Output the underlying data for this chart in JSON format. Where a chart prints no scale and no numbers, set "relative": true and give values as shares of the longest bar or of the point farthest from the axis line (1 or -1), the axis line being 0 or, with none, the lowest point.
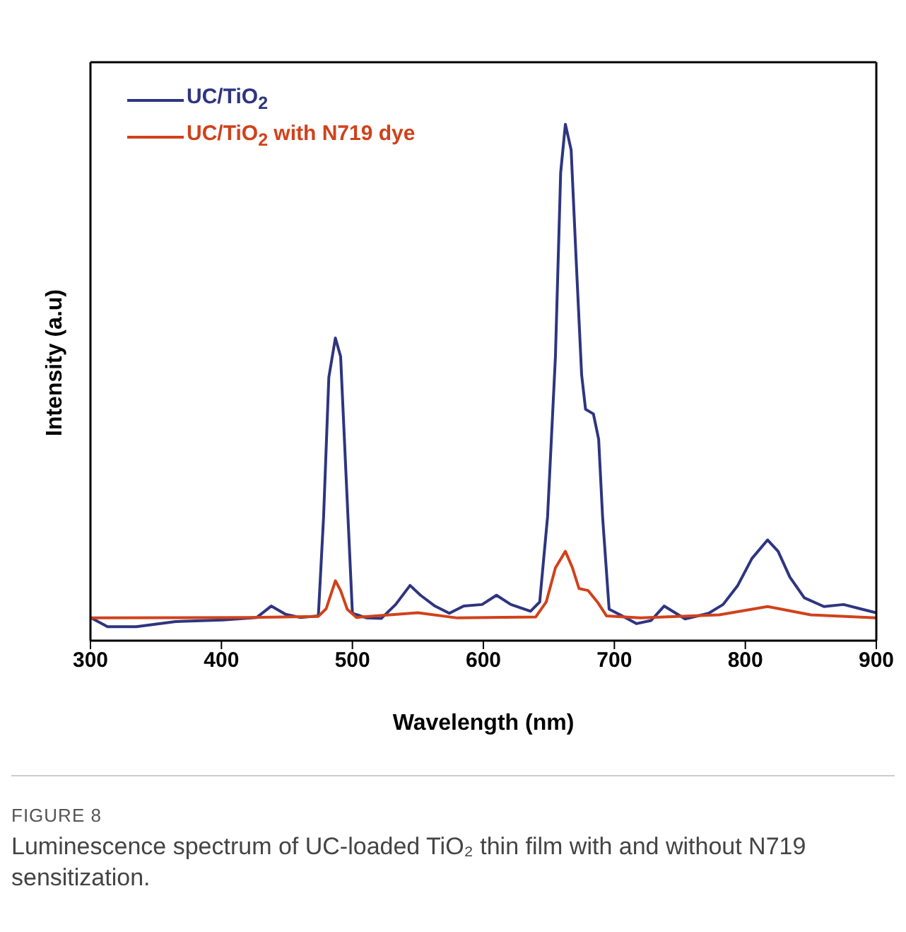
{
  "chart_data": {
    "type": "line",
    "title": "FIGURE 8",
    "xlabel": "Wavelength (nm)",
    "ylabel": "Intensity (a.u)",
    "relative": true,
    "annotations": [
      "Luminescence spectrum of UC-loaded TiO₂ thin film with and without N719 sensitization."
    ],
    "xlim": [
      300,
      900
    ],
    "xticks": [
      300,
      400,
      500,
      600,
      700,
      800,
      900
    ],
    "legend": "top left",
    "marker": "none",
    "line_style": "solid",
    "series": [
      {
        "name": "UC/TiO$_{2}$",
        "color": "#2e3580",
        "x": [
          300,
          313,
          335,
          365,
          401,
          427,
          438,
          449,
          460,
          474,
          478,
          482,
          487,
          491,
          495,
          500,
          511,
          522,
          533,
          544,
          552,
          563,
          574,
          585,
          599,
          610,
          621,
          636,
          643,
          649,
          655,
          659,
          662.6,
          667,
          671,
          675,
          678,
          684,
          688,
          691,
          696,
          706,
          717,
          728,
          738,
          754,
          772,
          783,
          794,
          805,
          817,
          825,
          834,
          845,
          860,
          875,
          889,
          900
        ],
        "values": [
          0.045,
          0.027,
          0.027,
          0.037,
          0.04,
          0.045,
          0.067,
          0.051,
          0.045,
          0.048,
          0.24,
          0.51,
          0.586,
          0.55,
          0.328,
          0.053,
          0.044,
          0.043,
          0.07,
          0.107,
          0.088,
          0.067,
          0.053,
          0.067,
          0.07,
          0.088,
          0.07,
          0.057,
          0.075,
          0.24,
          0.55,
          0.906,
          1.0,
          0.95,
          0.728,
          0.515,
          0.448,
          0.439,
          0.39,
          0.24,
          0.061,
          0.048,
          0.033,
          0.039,
          0.067,
          0.042,
          0.053,
          0.07,
          0.106,
          0.159,
          0.195,
          0.173,
          0.123,
          0.083,
          0.066,
          0.07,
          0.061,
          0.054
        ]
      },
      {
        "name": "UC/TiO$_{2}$ with N719 dye",
        "color": "#d0421b",
        "x": [
          300,
          420,
          474,
          480,
          487,
          491,
          496,
          503,
          550,
          580,
          640,
          648,
          655,
          662.6,
          668,
          673,
          680,
          687,
          694,
          720,
          780,
          817,
          850,
          900
        ],
        "values": [
          0.044,
          0.045,
          0.047,
          0.062,
          0.116,
          0.097,
          0.061,
          0.045,
          0.054,
          0.044,
          0.046,
          0.075,
          0.141,
          0.173,
          0.141,
          0.101,
          0.097,
          0.075,
          0.048,
          0.044,
          0.05,
          0.066,
          0.05,
          0.044
        ]
      }
    ]
  }
}
